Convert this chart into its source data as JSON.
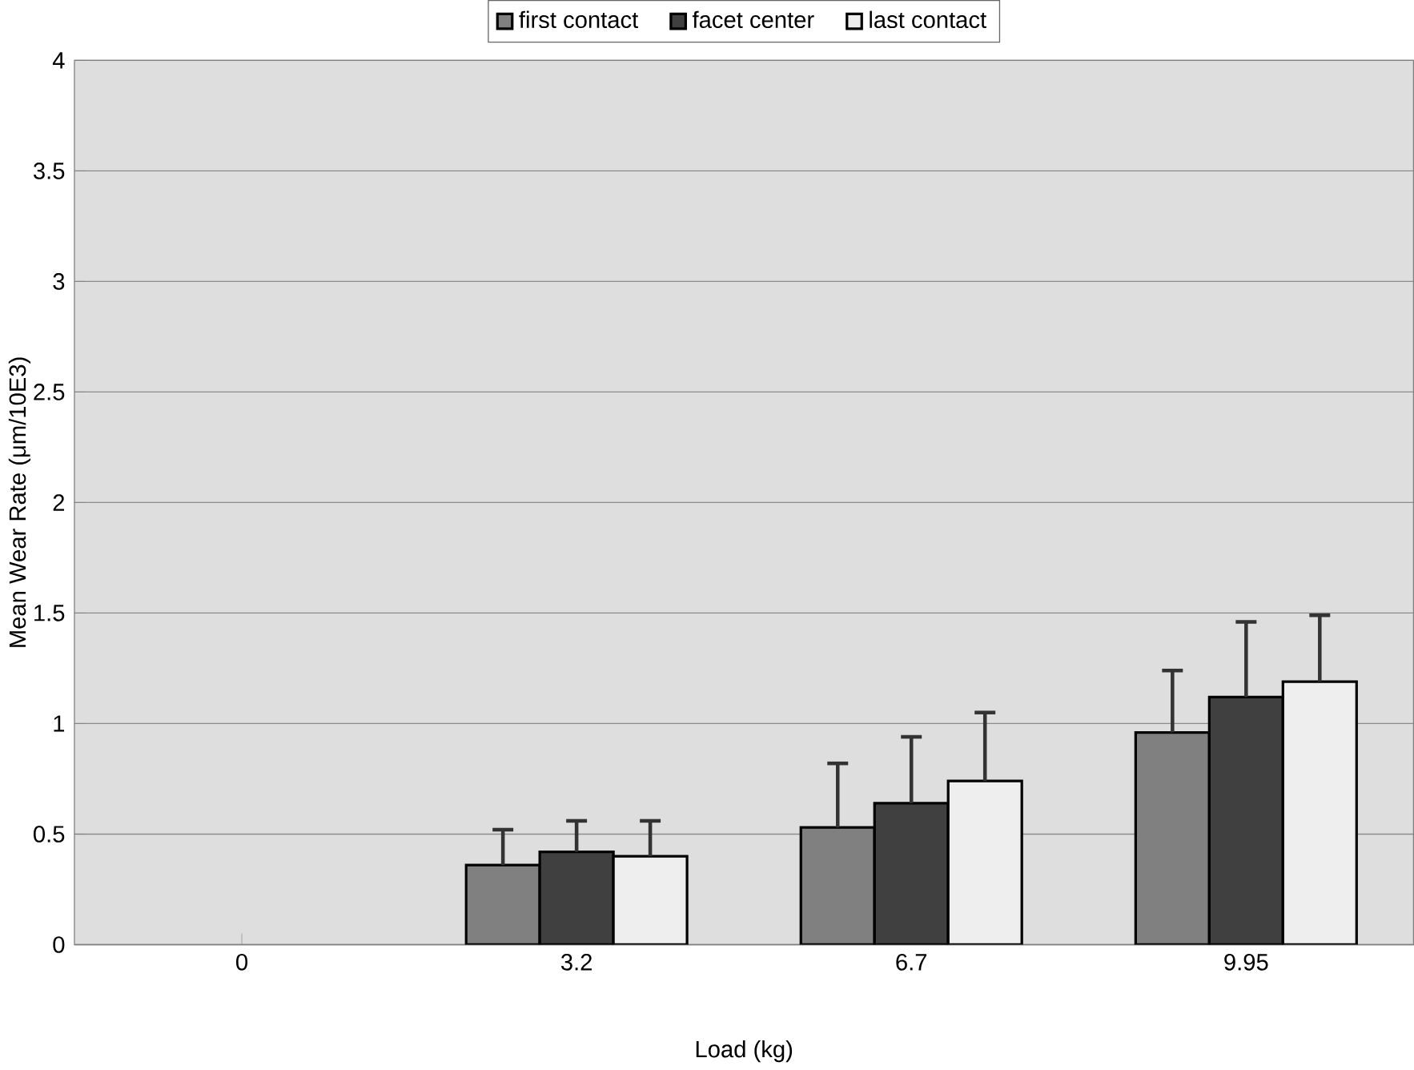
{
  "chart_data": {
    "type": "bar",
    "xlabel": "Load (kg)",
    "ylabel": "Mean Wear Rate (μm/10E3)",
    "categories": [
      "0",
      "3.2",
      "6.7",
      "9.95"
    ],
    "series": [
      {
        "name": "first contact",
        "color": "#808080",
        "values": [
          null,
          0.36,
          0.53,
          0.96
        ],
        "errors": [
          null,
          0.16,
          0.29,
          0.28
        ]
      },
      {
        "name": "facet center",
        "color": "#404040",
        "values": [
          null,
          0.42,
          0.64,
          1.12
        ],
        "errors": [
          null,
          0.14,
          0.3,
          0.34
        ]
      },
      {
        "name": "last contact",
        "color": "#eeeeee",
        "values": [
          null,
          0.4,
          0.74,
          1.19
        ],
        "errors": [
          null,
          0.16,
          0.31,
          0.3
        ]
      }
    ],
    "ylim": [
      0,
      4
    ],
    "yticks": [
      0,
      0.5,
      1,
      1.5,
      2,
      2.5,
      3,
      3.5,
      4
    ],
    "grid": "y",
    "legend": "top"
  }
}
